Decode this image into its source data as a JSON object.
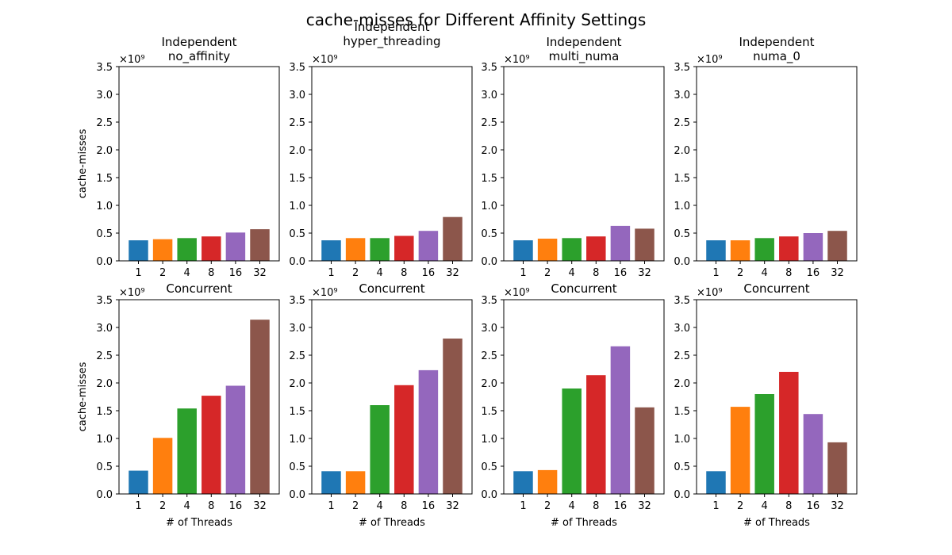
{
  "figure": {
    "title": "cache-misses for Different Affinity Settings",
    "colors": [
      "#1f77b4",
      "#ff7f0e",
      "#2ca02c",
      "#d62728",
      "#9467bd",
      "#8c564b"
    ]
  },
  "chart_data": [
    {
      "type": "bar",
      "title": "Independent\nno_affinity",
      "categories": [
        "1",
        "2",
        "4",
        "8",
        "16",
        "32"
      ],
      "values": [
        0.37,
        0.39,
        0.41,
        0.44,
        0.51,
        0.57
      ],
      "ylabel": "cache-misses",
      "xlabel": "",
      "ylim": [
        0,
        3.5
      ],
      "yticks": [
        "0.0",
        "0.5",
        "1.0",
        "1.5",
        "2.0",
        "2.5",
        "3.0",
        "3.5"
      ],
      "scale_label": "×10⁹"
    },
    {
      "type": "bar",
      "title": "Independent\nhyper_threading",
      "categories": [
        "1",
        "2",
        "4",
        "8",
        "16",
        "32"
      ],
      "values": [
        0.37,
        0.41,
        0.41,
        0.45,
        0.54,
        0.79
      ],
      "ylabel": "",
      "xlabel": "",
      "ylim": [
        0,
        3.5
      ],
      "yticks": [
        "0.0",
        "0.5",
        "1.0",
        "1.5",
        "2.0",
        "2.5",
        "3.0",
        "3.5"
      ],
      "scale_label": "×10⁹"
    },
    {
      "type": "bar",
      "title": "Independent\nmulti_numa",
      "categories": [
        "1",
        "2",
        "4",
        "8",
        "16",
        "32"
      ],
      "values": [
        0.37,
        0.4,
        0.41,
        0.44,
        0.63,
        0.58
      ],
      "ylabel": "",
      "xlabel": "",
      "ylim": [
        0,
        3.5
      ],
      "yticks": [
        "0.0",
        "0.5",
        "1.0",
        "1.5",
        "2.0",
        "2.5",
        "3.0",
        "3.5"
      ],
      "scale_label": "×10⁹"
    },
    {
      "type": "bar",
      "title": "Independent\nnuma_0",
      "categories": [
        "1",
        "2",
        "4",
        "8",
        "16",
        "32"
      ],
      "values": [
        0.37,
        0.37,
        0.41,
        0.44,
        0.5,
        0.54
      ],
      "ylabel": "",
      "xlabel": "",
      "ylim": [
        0,
        3.5
      ],
      "yticks": [
        "0.0",
        "0.5",
        "1.0",
        "1.5",
        "2.0",
        "2.5",
        "3.0",
        "3.5"
      ],
      "scale_label": "×10⁹"
    },
    {
      "type": "bar",
      "title": "Concurrent",
      "categories": [
        "1",
        "2",
        "4",
        "8",
        "16",
        "32"
      ],
      "values": [
        0.42,
        1.01,
        1.54,
        1.77,
        1.95,
        3.14
      ],
      "ylabel": "cache-misses",
      "xlabel": "# of Threads",
      "ylim": [
        0,
        3.5
      ],
      "yticks": [
        "0.0",
        "0.5",
        "1.0",
        "1.5",
        "2.0",
        "2.5",
        "3.0",
        "3.5"
      ],
      "scale_label": "×10⁹"
    },
    {
      "type": "bar",
      "title": "Concurrent",
      "categories": [
        "1",
        "2",
        "4",
        "8",
        "16",
        "32"
      ],
      "values": [
        0.41,
        0.41,
        1.6,
        1.96,
        2.23,
        2.8
      ],
      "ylabel": "",
      "xlabel": "# of Threads",
      "ylim": [
        0,
        3.5
      ],
      "yticks": [
        "0.0",
        "0.5",
        "1.0",
        "1.5",
        "2.0",
        "2.5",
        "3.0",
        "3.5"
      ],
      "scale_label": "×10⁹"
    },
    {
      "type": "bar",
      "title": "Concurrent",
      "categories": [
        "1",
        "2",
        "4",
        "8",
        "16",
        "32"
      ],
      "values": [
        0.41,
        0.43,
        1.9,
        2.14,
        2.66,
        1.56
      ],
      "ylabel": "",
      "xlabel": "# of Threads",
      "ylim": [
        0,
        3.5
      ],
      "yticks": [
        "0.0",
        "0.5",
        "1.0",
        "1.5",
        "2.0",
        "2.5",
        "3.0",
        "3.5"
      ],
      "scale_label": "×10⁹"
    },
    {
      "type": "bar",
      "title": "Concurrent",
      "categories": [
        "1",
        "2",
        "4",
        "8",
        "16",
        "32"
      ],
      "values": [
        0.41,
        1.57,
        1.8,
        2.2,
        1.44,
        0.93
      ],
      "ylabel": "",
      "xlabel": "# of Threads",
      "ylim": [
        0,
        3.5
      ],
      "yticks": [
        "0.0",
        "0.5",
        "1.0",
        "1.5",
        "2.0",
        "2.5",
        "3.0",
        "3.5"
      ],
      "scale_label": "×10⁹"
    }
  ]
}
